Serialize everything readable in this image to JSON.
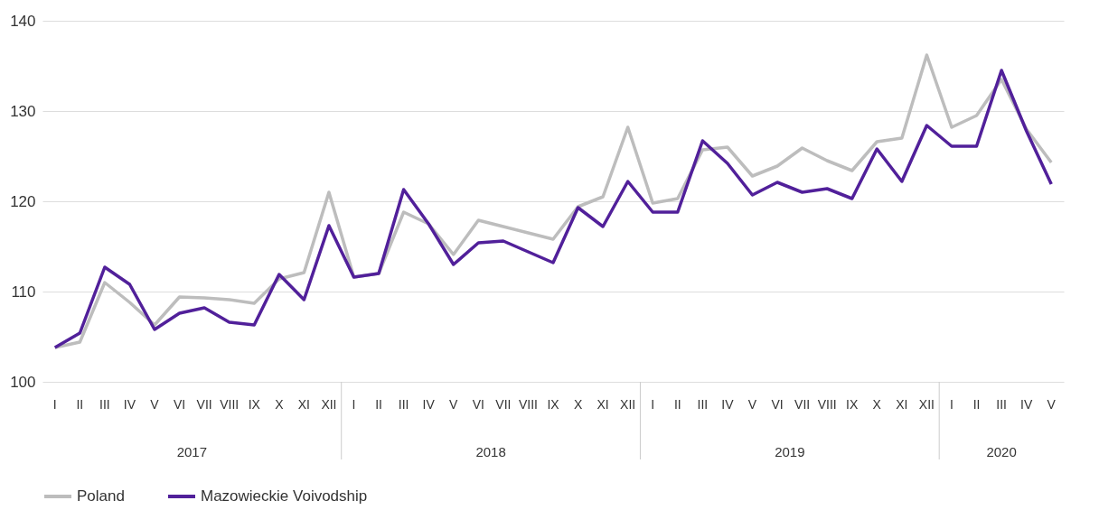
{
  "chart_data": {
    "type": "line",
    "categories": [
      "I",
      "II",
      "III",
      "IV",
      "V",
      "VI",
      "VII",
      "VIII",
      "IX",
      "X",
      "XI",
      "XII",
      "I",
      "II",
      "III",
      "IV",
      "V",
      "VI",
      "VII",
      "VIII",
      "IX",
      "X",
      "XI",
      "XII",
      "I",
      "II",
      "III",
      "IV",
      "V",
      "VI",
      "VII",
      "VIII",
      "IX",
      "X",
      "XI",
      "XII",
      "I",
      "II",
      "III",
      "IV",
      "V"
    ],
    "annotations": [
      "2017",
      "2018",
      "2019",
      "2020"
    ],
    "series": [
      {
        "name": "Poland",
        "color": "#bdbdbd",
        "values": [
          103.8,
          104.4,
          111,
          108.8,
          106.3,
          109.4,
          109.3,
          109.1,
          108.7,
          111.4,
          112.1,
          121,
          111.6,
          112,
          118.8,
          117.5,
          114.1,
          117.9,
          117.2,
          116.5,
          115.8,
          119.4,
          120.5,
          128.2,
          119.8,
          120.3,
          125.7,
          126,
          122.8,
          123.9,
          125.9,
          124.5,
          123.4,
          126.6,
          127,
          136.2,
          128.2,
          129.5,
          133.5,
          128,
          124.3
        ]
      },
      {
        "name": "Mazowieckie Voivodship",
        "color": "#51209a",
        "values": [
          103.8,
          105.4,
          112.7,
          110.8,
          105.8,
          107.6,
          108.2,
          106.6,
          106.3,
          111.9,
          109.1,
          117.3,
          111.6,
          112,
          121.3,
          117.5,
          113,
          115.4,
          115.6,
          114.4,
          113.2,
          119.3,
          117.2,
          122.2,
          118.8,
          118.8,
          126.7,
          124.2,
          120.7,
          122.1,
          121,
          121.4,
          120.3,
          125.8,
          122.2,
          128.4,
          126.1,
          126.1,
          134.5,
          127.8,
          121.9
        ]
      }
    ],
    "ylim": [
      100,
      140
    ],
    "yticks": [
      100,
      110,
      120,
      130,
      140
    ],
    "grid": "y",
    "legend": "bottom left",
    "marker": "none",
    "line_style": "solid"
  }
}
